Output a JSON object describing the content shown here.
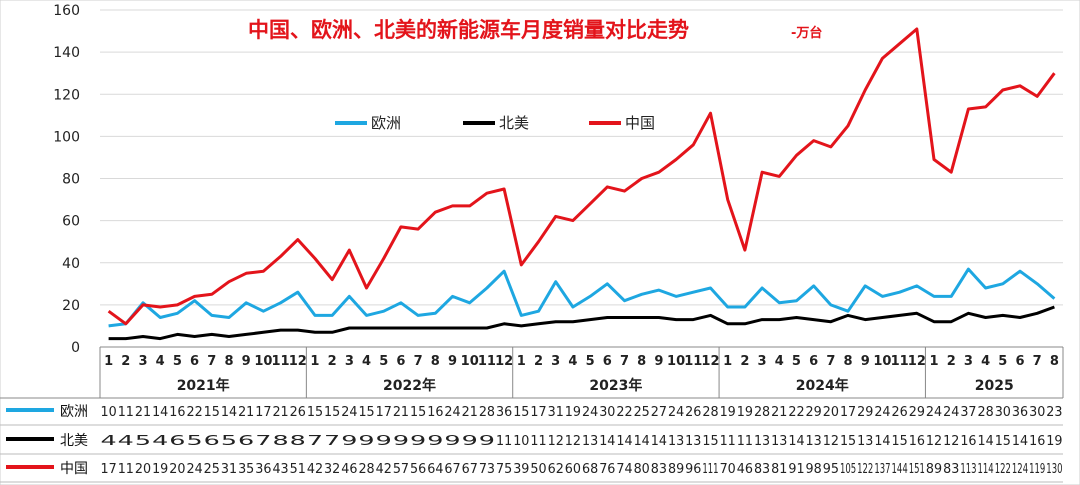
{
  "chart_data": {
    "type": "line",
    "title": "中国、欧洲、北美的新能源车月度销量对比走势",
    "subtitle": "-万台",
    "ylim": [
      0,
      160
    ],
    "yticks": [
      0,
      20,
      40,
      60,
      80,
      100,
      120,
      140,
      160
    ],
    "grid": true,
    "legend_position": "top-center",
    "legend": [
      "欧洲",
      "北美",
      "中国"
    ],
    "years": [
      {
        "label": "2021年",
        "months": 12
      },
      {
        "label": "2022年",
        "months": 12
      },
      {
        "label": "2023年",
        "months": 12
      },
      {
        "label": "2024年",
        "months": 12
      },
      {
        "label": "2025",
        "months": 8
      }
    ],
    "x": [
      "1",
      "2",
      "3",
      "4",
      "5",
      "6",
      "7",
      "8",
      "9",
      "10",
      "11",
      "12",
      "1",
      "2",
      "3",
      "4",
      "5",
      "6",
      "7",
      "8",
      "9",
      "10",
      "11",
      "12",
      "1",
      "2",
      "3",
      "4",
      "5",
      "6",
      "7",
      "8",
      "9",
      "10",
      "11",
      "12",
      "1",
      "2",
      "3",
      "4",
      "5",
      "6",
      "7",
      "8",
      "9",
      "10",
      "11",
      "12",
      "1",
      "2",
      "3",
      "4",
      "5",
      "6",
      "7",
      "8"
    ],
    "series": [
      {
        "name": "欧洲",
        "color": "#1ea7e1",
        "values": [
          10,
          11,
          21,
          14,
          16,
          22,
          15,
          14,
          21,
          17,
          21,
          26,
          15,
          15,
          24,
          15,
          17,
          21,
          15,
          16,
          24,
          21,
          28,
          36,
          15,
          17,
          31,
          19,
          24,
          30,
          22,
          25,
          27,
          24,
          26,
          28,
          19,
          19,
          28,
          21,
          22,
          29,
          20,
          17,
          29,
          24,
          26,
          29,
          24,
          24,
          37,
          28,
          30,
          36,
          30,
          23
        ]
      },
      {
        "name": "北美",
        "color": "#000000",
        "values": [
          4,
          4,
          5,
          4,
          6,
          5,
          6,
          5,
          6,
          7,
          8,
          8,
          7,
          7,
          9,
          9,
          9,
          9,
          9,
          9,
          9,
          9,
          9,
          11,
          10,
          11,
          12,
          12,
          13,
          14,
          14,
          14,
          14,
          13,
          13,
          15,
          11,
          11,
          13,
          13,
          14,
          13,
          12,
          15,
          13,
          14,
          15,
          16,
          12,
          12,
          16,
          14,
          15,
          14,
          16,
          19
        ]
      },
      {
        "name": "中国",
        "color": "#e3141b",
        "values": [
          17,
          11,
          20,
          19,
          20,
          24,
          25,
          31,
          35,
          36,
          43,
          51,
          42,
          32,
          46,
          28,
          42,
          57,
          56,
          64,
          67,
          67,
          73,
          75,
          39,
          50,
          62,
          60,
          68,
          76,
          74,
          80,
          83,
          89,
          96,
          111,
          70,
          46,
          83,
          81,
          91,
          98,
          95,
          105,
          122,
          137,
          144,
          151,
          89,
          83,
          113,
          114,
          122,
          124,
          119,
          130
        ]
      }
    ]
  }
}
